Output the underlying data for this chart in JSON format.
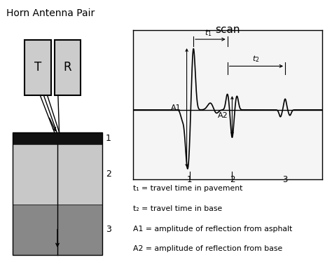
{
  "title": "Horn Antenna Pair",
  "bg_color": "#ffffff",
  "antenna_T_label": "T",
  "antenna_R_label": "R",
  "scan_label": "scan",
  "legend_lines": [
    "t₁ = travel time in pavement",
    "t₂ = travel time in base",
    "A1 = amplitude of reflection from asphalt",
    "A2 = amplitude of reflection from base"
  ],
  "ant_box_color": "#cccccc",
  "layer1_color": "#111111",
  "layer2_color": "#c8c8c8",
  "layer3_color": "#888888"
}
